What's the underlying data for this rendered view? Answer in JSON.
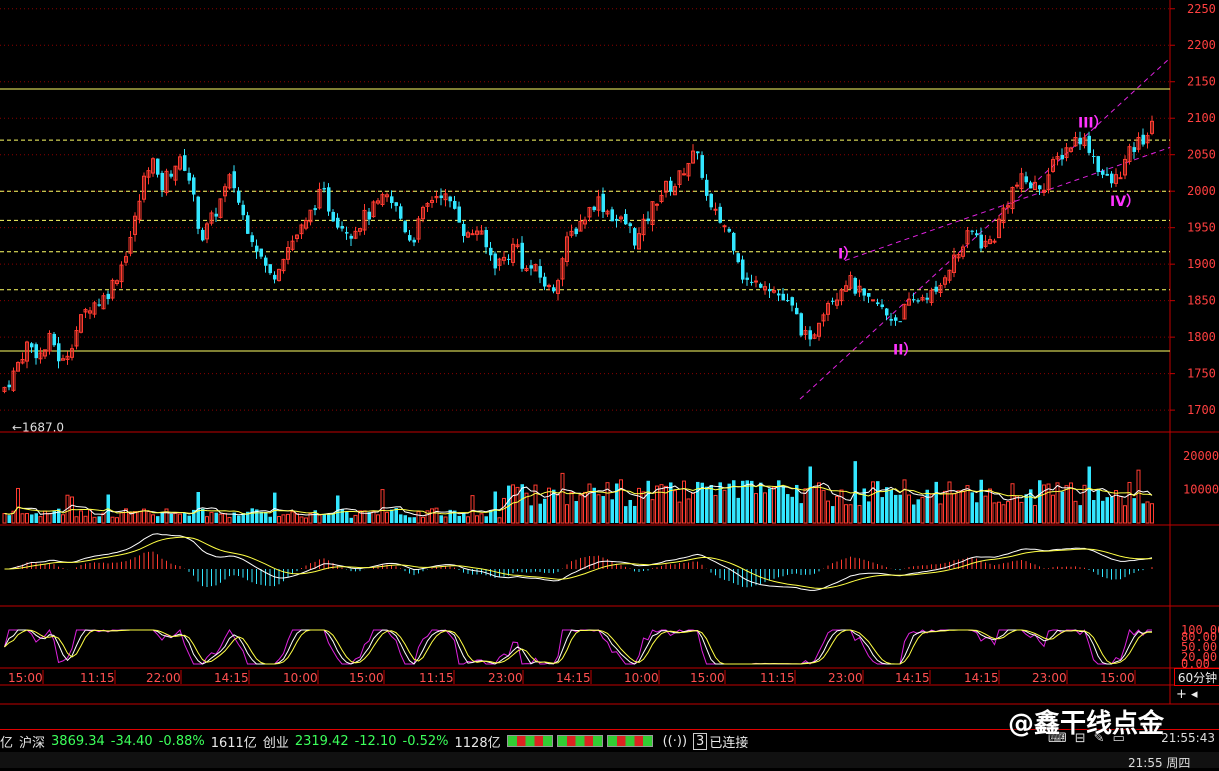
{
  "chart_data": {
    "type": "candlestick",
    "timeframe": "60分钟",
    "y_axis": {
      "ticks": [
        1700,
        1750,
        1800,
        1850,
        1900,
        1950,
        2000,
        2050,
        2100,
        2150,
        2200,
        2250
      ],
      "range": [
        1670,
        2262
      ]
    },
    "low_marker": "←1687.0",
    "h_lines": [
      {
        "value": 2140,
        "color": "#ffff66",
        "style": "solid"
      },
      {
        "value": 2070,
        "color": "#ffff66",
        "style": "dashed"
      },
      {
        "value": 2000,
        "color": "#ffff66",
        "style": "dashed"
      },
      {
        "value": 1960,
        "color": "#ffff66",
        "style": "dashed"
      },
      {
        "value": 1917,
        "color": "#ffff66",
        "style": "dashed"
      },
      {
        "value": 1865,
        "color": "#ffff66",
        "style": "dashed"
      },
      {
        "value": 1781,
        "color": "#ffff66",
        "style": "solid"
      }
    ],
    "x_labels": [
      "15:00",
      "11:15",
      "22:00",
      "14:15",
      "10:00",
      "15:00",
      "11:15",
      "23:00",
      "14:15",
      "10:00",
      "15:00",
      "11:15",
      "23:00",
      "14:15",
      "14:15",
      "23:00",
      "15:00"
    ],
    "close_keypoints": [
      [
        0,
        1725
      ],
      [
        12,
        1750
      ],
      [
        25,
        1790
      ],
      [
        40,
        1775
      ],
      [
        50,
        1800
      ],
      [
        60,
        1760
      ],
      [
        75,
        1810
      ],
      [
        88,
        1845
      ],
      [
        100,
        1850
      ],
      [
        110,
        1870
      ],
      [
        120,
        1900
      ],
      [
        132,
        1950
      ],
      [
        140,
        2000
      ],
      [
        145,
        2030
      ],
      [
        150,
        2050
      ],
      [
        158,
        2000
      ],
      [
        165,
        2020
      ],
      [
        175,
        2040
      ],
      [
        185,
        2035
      ],
      [
        193,
        1980
      ],
      [
        200,
        1935
      ],
      [
        210,
        1960
      ],
      [
        220,
        1990
      ],
      [
        230,
        2020
      ],
      [
        240,
        1970
      ],
      [
        252,
        1935
      ],
      [
        262,
        1900
      ],
      [
        270,
        1880
      ],
      [
        282,
        1915
      ],
      [
        295,
        1940
      ],
      [
        305,
        1955
      ],
      [
        315,
        1990
      ],
      [
        322,
        1995
      ],
      [
        330,
        1970
      ],
      [
        340,
        1955
      ],
      [
        350,
        1945
      ],
      [
        360,
        1960
      ],
      [
        372,
        1975
      ],
      [
        385,
        1990
      ],
      [
        395,
        1975
      ],
      [
        405,
        1945
      ],
      [
        410,
        1930
      ],
      [
        420,
        1965
      ],
      [
        430,
        1990
      ],
      [
        440,
        2000
      ],
      [
        448,
        1980
      ],
      [
        455,
        1975
      ],
      [
        465,
        1935
      ],
      [
        475,
        1950
      ],
      [
        485,
        1920
      ],
      [
        495,
        1900
      ],
      [
        505,
        1910
      ],
      [
        515,
        1930
      ],
      [
        523,
        1890
      ],
      [
        530,
        1895
      ],
      [
        540,
        1880
      ],
      [
        550,
        1860
      ],
      [
        557,
        1890
      ],
      [
        567,
        1935
      ],
      [
        577,
        1955
      ],
      [
        586,
        1970
      ],
      [
        595,
        1990
      ],
      [
        605,
        1975
      ],
      [
        615,
        1960
      ],
      [
        625,
        1955
      ],
      [
        635,
        1930
      ],
      [
        645,
        1960
      ],
      [
        655,
        1990
      ],
      [
        665,
        2005
      ],
      [
        675,
        2010
      ],
      [
        685,
        2040
      ],
      [
        693,
        2050
      ],
      [
        700,
        2030
      ],
      [
        707,
        1975
      ],
      [
        715,
        1965
      ],
      [
        725,
        1950
      ],
      [
        735,
        1920
      ],
      [
        742,
        1880
      ],
      [
        752,
        1870
      ],
      [
        762,
        1880
      ],
      [
        772,
        1865
      ],
      [
        782,
        1850
      ],
      [
        792,
        1835
      ],
      [
        802,
        1805
      ],
      [
        808,
        1785
      ],
      [
        815,
        1820
      ],
      [
        825,
        1850
      ],
      [
        835,
        1860
      ],
      [
        845,
        1880
      ],
      [
        855,
        1865
      ],
      [
        865,
        1845
      ],
      [
        875,
        1845
      ],
      [
        885,
        1830
      ],
      [
        895,
        1825
      ],
      [
        905,
        1840
      ],
      [
        915,
        1850
      ],
      [
        925,
        1860
      ],
      [
        935,
        1855
      ],
      [
        945,
        1895
      ],
      [
        955,
        1910
      ],
      [
        963,
        1930
      ],
      [
        972,
        1945
      ],
      [
        982,
        1925
      ],
      [
        992,
        1935
      ],
      [
        1002,
        1975
      ],
      [
        1012,
        2005
      ],
      [
        1022,
        2015
      ],
      [
        1032,
        2005
      ],
      [
        1042,
        2010
      ],
      [
        1052,
        2035
      ],
      [
        1062,
        2055
      ],
      [
        1070,
        2065
      ],
      [
        1078,
        2075
      ],
      [
        1088,
        2060
      ],
      [
        1096,
        2035
      ],
      [
        1104,
        2015
      ],
      [
        1112,
        2010
      ],
      [
        1120,
        2030
      ],
      [
        1130,
        2055
      ],
      [
        1140,
        2070
      ],
      [
        1150,
        2085
      ],
      [
        1157,
        2100
      ]
    ],
    "wave_labels": [
      {
        "text": "I）",
        "x_index": 838,
        "y": 1908
      },
      {
        "text": "II）",
        "x_index": 893,
        "y": 1776
      },
      {
        "text": "III）",
        "x_index": 1078,
        "y": 2087
      },
      {
        "text": "IV）",
        "x_index": 1110,
        "y": 1980
      }
    ],
    "volume_axis": {
      "ticks": [
        10000,
        20000
      ]
    },
    "oscillator_axis": {
      "ticks": [
        "100.00",
        "80.00",
        "50.00",
        "20.00",
        "0.00"
      ]
    }
  },
  "status": {
    "prefix": "亿",
    "idx1_name": "沪深",
    "idx1_value": "3869.34",
    "idx1_change": "-34.40",
    "idx1_pct": "-0.88%",
    "idx1_amount": "1611亿",
    "idx2_name": "创业",
    "idx2_value": "2319.42",
    "idx2_change": "-12.10",
    "idx2_pct": "-0.52%",
    "idx2_amount": "1128亿",
    "conn_num": "3",
    "conn_text": "已连接",
    "time": "21:55:43",
    "time2": "21:55 周四"
  },
  "toolbar": {
    "period": "60分钟",
    "zoom": "+ ◂"
  },
  "watermark": "@鑫干线点金"
}
